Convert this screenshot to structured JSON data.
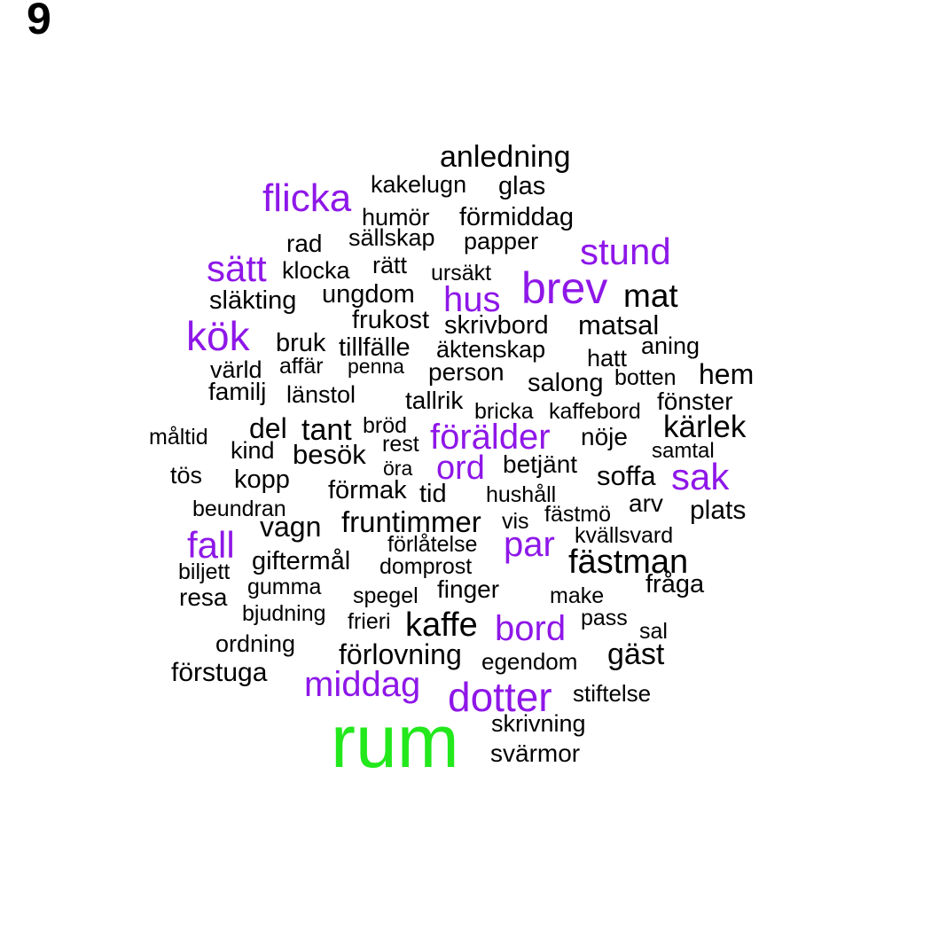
{
  "panel_label": "9",
  "colors": {
    "black": "#000000",
    "purple": "#8e17e8",
    "green": "#22e81c"
  },
  "words": [
    {
      "text": "anledning",
      "color": "black"
    },
    {
      "text": "kakelugn",
      "color": "black"
    },
    {
      "text": "glas",
      "color": "black"
    },
    {
      "text": "flicka",
      "color": "purple"
    },
    {
      "text": "humör",
      "color": "black"
    },
    {
      "text": "förmiddag",
      "color": "black"
    },
    {
      "text": "sällskap",
      "color": "black"
    },
    {
      "text": "rad",
      "color": "black"
    },
    {
      "text": "papper",
      "color": "black"
    },
    {
      "text": "stund",
      "color": "purple"
    },
    {
      "text": "sätt",
      "color": "purple"
    },
    {
      "text": "klocka",
      "color": "black"
    },
    {
      "text": "rätt",
      "color": "black"
    },
    {
      "text": "ursäkt",
      "color": "black"
    },
    {
      "text": "brev",
      "color": "purple"
    },
    {
      "text": "släkting",
      "color": "black"
    },
    {
      "text": "ungdom",
      "color": "black"
    },
    {
      "text": "hus",
      "color": "purple"
    },
    {
      "text": "mat",
      "color": "black"
    },
    {
      "text": "frukost",
      "color": "black"
    },
    {
      "text": "skrivbord",
      "color": "black"
    },
    {
      "text": "matsal",
      "color": "black"
    },
    {
      "text": "kök",
      "color": "purple"
    },
    {
      "text": "bruk",
      "color": "black"
    },
    {
      "text": "tillfälle",
      "color": "black"
    },
    {
      "text": "äktenskap",
      "color": "black"
    },
    {
      "text": "aning",
      "color": "black"
    },
    {
      "text": "hatt",
      "color": "black"
    },
    {
      "text": "värld",
      "color": "black"
    },
    {
      "text": "affär",
      "color": "black"
    },
    {
      "text": "penna",
      "color": "black"
    },
    {
      "text": "person",
      "color": "black"
    },
    {
      "text": "hem",
      "color": "black"
    },
    {
      "text": "botten",
      "color": "black"
    },
    {
      "text": "salong",
      "color": "black"
    },
    {
      "text": "familj",
      "color": "black"
    },
    {
      "text": "länstol",
      "color": "black"
    },
    {
      "text": "tallrik",
      "color": "black"
    },
    {
      "text": "fönster",
      "color": "black"
    },
    {
      "text": "bricka",
      "color": "black"
    },
    {
      "text": "kaffebord",
      "color": "black"
    },
    {
      "text": "kärlek",
      "color": "black"
    },
    {
      "text": "måltid",
      "color": "black"
    },
    {
      "text": "del",
      "color": "black"
    },
    {
      "text": "tant",
      "color": "black"
    },
    {
      "text": "bröd",
      "color": "black"
    },
    {
      "text": "förälder",
      "color": "purple"
    },
    {
      "text": "nöje",
      "color": "black"
    },
    {
      "text": "kind",
      "color": "black"
    },
    {
      "text": "rest",
      "color": "black"
    },
    {
      "text": "besök",
      "color": "black"
    },
    {
      "text": "samtal",
      "color": "black"
    },
    {
      "text": "öra",
      "color": "black"
    },
    {
      "text": "ord",
      "color": "purple"
    },
    {
      "text": "betjänt",
      "color": "black"
    },
    {
      "text": "tös",
      "color": "black"
    },
    {
      "text": "soffa",
      "color": "black"
    },
    {
      "text": "sak",
      "color": "purple"
    },
    {
      "text": "kopp",
      "color": "black"
    },
    {
      "text": "förmak",
      "color": "black"
    },
    {
      "text": "tid",
      "color": "black"
    },
    {
      "text": "hushåll",
      "color": "black"
    },
    {
      "text": "beundran",
      "color": "black"
    },
    {
      "text": "arv",
      "color": "black"
    },
    {
      "text": "plats",
      "color": "black"
    },
    {
      "text": "fästmö",
      "color": "black"
    },
    {
      "text": "fruntimmer",
      "color": "black"
    },
    {
      "text": "vis",
      "color": "black"
    },
    {
      "text": "vagn",
      "color": "black"
    },
    {
      "text": "kvällsvard",
      "color": "black"
    },
    {
      "text": "fall",
      "color": "purple"
    },
    {
      "text": "par",
      "color": "purple"
    },
    {
      "text": "förlåtelse",
      "color": "black"
    },
    {
      "text": "fästman",
      "color": "black"
    },
    {
      "text": "giftermål",
      "color": "black"
    },
    {
      "text": "domprost",
      "color": "black"
    },
    {
      "text": "biljett",
      "color": "black"
    },
    {
      "text": "fråga",
      "color": "black"
    },
    {
      "text": "gumma",
      "color": "black"
    },
    {
      "text": "finger",
      "color": "black"
    },
    {
      "text": "resa",
      "color": "black"
    },
    {
      "text": "spegel",
      "color": "black"
    },
    {
      "text": "make",
      "color": "black"
    },
    {
      "text": "bjudning",
      "color": "black"
    },
    {
      "text": "pass",
      "color": "black"
    },
    {
      "text": "frieri",
      "color": "black"
    },
    {
      "text": "kaffe",
      "color": "black"
    },
    {
      "text": "bord",
      "color": "purple"
    },
    {
      "text": "sal",
      "color": "black"
    },
    {
      "text": "ordning",
      "color": "black"
    },
    {
      "text": "förlovning",
      "color": "black"
    },
    {
      "text": "gäst",
      "color": "black"
    },
    {
      "text": "egendom",
      "color": "black"
    },
    {
      "text": "förstuga",
      "color": "black"
    },
    {
      "text": "middag",
      "color": "purple"
    },
    {
      "text": "dotter",
      "color": "purple"
    },
    {
      "text": "stiftelse",
      "color": "black"
    },
    {
      "text": "skrivning",
      "color": "black"
    },
    {
      "text": "rum",
      "color": "green"
    },
    {
      "text": "svärmor",
      "color": "black"
    }
  ]
}
